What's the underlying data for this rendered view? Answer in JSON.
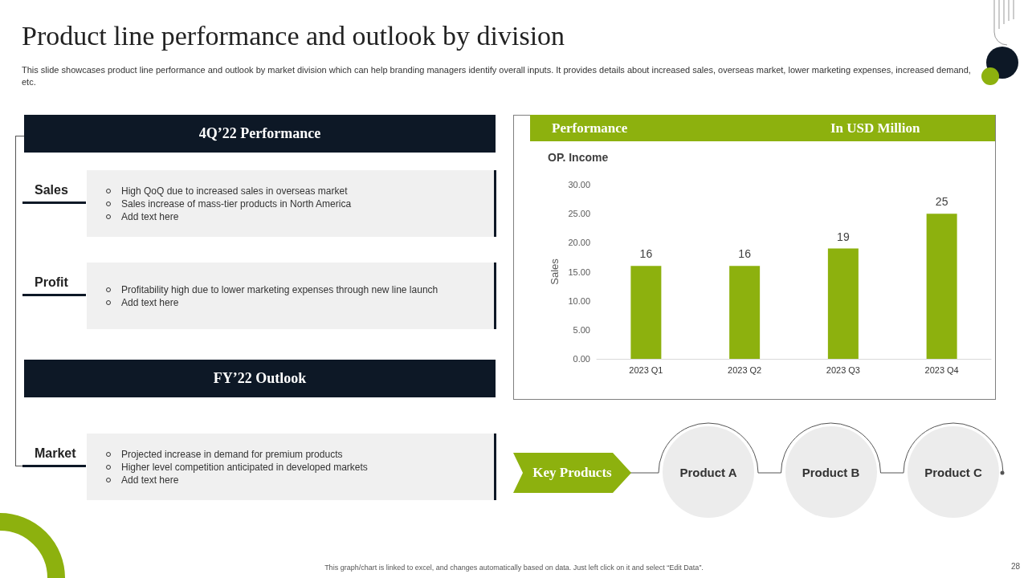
{
  "chart_data": [
    {
      "type": "other",
      "title": "Product line performance and outlook by division",
      "subtitle": "This slide showcases product line performance and outlook by market division which can help branding managers identify overall inputs. It provides details about increased sales, overseas market, lower marketing expenses, increased demand, etc.",
      "annotations": [
        "This graph/chart is linked to excel, and changes automatically based on data. Just left click on it and select “Edit Data”.",
        "28"
      ]
    },
    {
      "type": "other",
      "title": "4Q’22 Performance"
    },
    {
      "type": "other",
      "title": "Sales",
      "annotations": [
        "High QoQ due to increased sales in overseas market",
        "Sales increase of mass-tier products in North America",
        "Add text here"
      ]
    },
    {
      "type": "other",
      "title": "Profit",
      "annotations": [
        "Profitability high due to lower marketing expenses through new line launch",
        "Add text here"
      ]
    },
    {
      "type": "other",
      "title": "FY’22 Outlook"
    },
    {
      "type": "other",
      "title": "Market",
      "annotations": [
        "Projected increase in demand for premium products",
        "Higher level competition anticipated in developed  markets",
        "Add text here"
      ]
    },
    {
      "type": "bar",
      "title": "Performance",
      "subtitle": "In USD Million",
      "annotations": [
        "OP. Income"
      ],
      "ylabel": "Sales",
      "categories": [
        "2023 Q1",
        "2023 Q2",
        "2023 Q3",
        "2023 Q4"
      ],
      "values": [
        16,
        16,
        19,
        25
      ],
      "color": "#8db10e",
      "data_labels": true,
      "ylim": [
        0,
        30
      ],
      "yticks": [
        {
          "value": 0,
          "label": "0.00"
        },
        {
          "value": 5,
          "label": "5.00"
        },
        {
          "value": 10,
          "label": "10.00"
        },
        {
          "value": 15,
          "label": "15.00"
        },
        {
          "value": 20,
          "label": "20.00"
        },
        {
          "value": 25,
          "label": "25.00"
        },
        {
          "value": 30,
          "label": "30.00"
        }
      ],
      "grid": false
    },
    {
      "type": "other",
      "title": "Key Products",
      "categories": [
        "Product A",
        "Product B",
        "Product C"
      ]
    }
  ]
}
